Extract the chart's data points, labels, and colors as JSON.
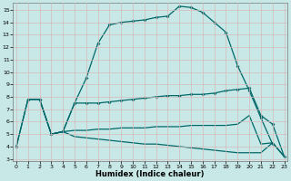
{
  "xlabel": "Humidex (Indice chaleur)",
  "bg_color": "#c8e8e8",
  "line_color": "#006868",
  "grid_color": "#b8d8d8",
  "xlim": [
    -0.3,
    23.3
  ],
  "ylim": [
    2.8,
    15.6
  ],
  "xticks": [
    0,
    1,
    2,
    3,
    4,
    5,
    6,
    7,
    8,
    9,
    10,
    11,
    12,
    13,
    14,
    15,
    16,
    17,
    18,
    19,
    20,
    21,
    22,
    23
  ],
  "yticks": [
    3,
    4,
    5,
    6,
    7,
    8,
    9,
    10,
    11,
    12,
    13,
    14,
    15
  ],
  "curve_top_x": [
    0,
    1,
    2,
    3,
    4,
    5,
    6,
    7,
    8,
    9,
    10,
    11,
    12,
    13,
    14,
    15,
    16,
    17,
    18,
    19,
    20,
    21,
    22
  ],
  "curve_top_y": [
    4.0,
    7.8,
    7.8,
    5.0,
    5.2,
    7.5,
    9.5,
    12.3,
    13.8,
    14.0,
    14.1,
    14.2,
    14.4,
    14.5,
    15.3,
    15.2,
    14.8,
    14.0,
    13.2,
    10.5,
    8.5,
    6.3,
    4.2
  ],
  "curve_mid_upper_x": [
    1,
    2,
    3,
    4,
    5,
    6,
    7,
    8,
    9,
    10,
    11,
    12,
    13,
    14,
    15,
    16,
    17,
    18,
    19,
    20,
    21,
    22,
    23
  ],
  "curve_mid_upper_y": [
    7.8,
    7.8,
    5.0,
    5.2,
    7.5,
    7.5,
    7.5,
    7.6,
    7.7,
    7.8,
    7.9,
    8.0,
    8.1,
    8.1,
    8.2,
    8.2,
    8.3,
    8.5,
    8.6,
    8.7,
    6.5,
    5.8,
    3.2
  ],
  "curve_mid_lower_x": [
    3,
    4,
    5,
    6,
    7,
    8,
    9,
    10,
    11,
    12,
    13,
    14,
    15,
    16,
    17,
    18,
    19,
    20,
    21,
    22,
    23
  ],
  "curve_mid_lower_y": [
    5.0,
    5.2,
    5.3,
    5.3,
    5.4,
    5.4,
    5.5,
    5.5,
    5.5,
    5.6,
    5.6,
    5.6,
    5.7,
    5.7,
    5.7,
    5.7,
    5.8,
    6.5,
    4.2,
    4.3,
    3.2
  ],
  "curve_bot_x": [
    0,
    1,
    2,
    3,
    4,
    5,
    6,
    7,
    8,
    9,
    10,
    11,
    12,
    13,
    14,
    15,
    16,
    17,
    18,
    19,
    20,
    21,
    22,
    23
  ],
  "curve_bot_y": [
    4.0,
    7.8,
    7.8,
    5.0,
    5.2,
    4.8,
    4.7,
    4.6,
    4.5,
    4.4,
    4.3,
    4.2,
    4.2,
    4.1,
    4.0,
    3.9,
    3.8,
    3.7,
    3.6,
    3.5,
    3.5,
    3.5,
    4.3,
    3.2
  ]
}
